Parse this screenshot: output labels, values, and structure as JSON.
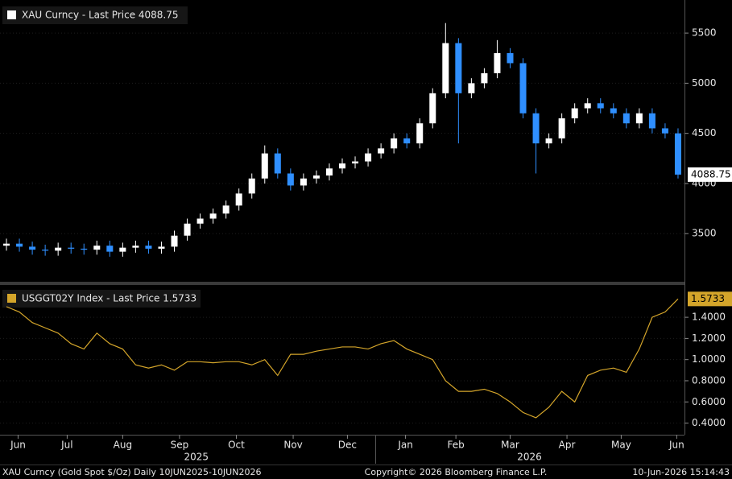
{
  "chart_data": [
    {
      "type": "candlestick",
      "title": "XAU Curncy - Last Price 4088.75",
      "up_color": "#ffffff",
      "down_color": "#2f8fff",
      "legend_color": "#ffffff",
      "open": [
        3380,
        3400,
        3370,
        3340,
        3330,
        3360,
        3350,
        3340,
        3380,
        3320,
        3360,
        3380,
        3350,
        3370,
        3480,
        3600,
        3650,
        3700,
        3780,
        3900,
        4050,
        4300,
        4100,
        3980,
        4050,
        4080,
        4150,
        4200,
        4220,
        4300,
        4350,
        4450,
        4400,
        4600,
        4900,
        5400,
        4900,
        5000,
        5100,
        5300,
        5200,
        4700,
        4400,
        4450,
        4650,
        4750,
        4800,
        4750,
        4700,
        4600,
        4700,
        4550,
        4500
      ],
      "high": [
        3450,
        3450,
        3420,
        3390,
        3410,
        3410,
        3400,
        3430,
        3430,
        3410,
        3430,
        3430,
        3420,
        3530,
        3650,
        3700,
        3750,
        3830,
        3950,
        4100,
        4380,
        4350,
        4150,
        4100,
        4130,
        4200,
        4250,
        4270,
        4350,
        4400,
        4500,
        4500,
        4650,
        4950,
        5600,
        5450,
        5050,
        5150,
        5430,
        5350,
        5250,
        4750,
        4500,
        4700,
        4800,
        4850,
        4850,
        4800,
        4750,
        4750,
        4750,
        4600,
        4550
      ],
      "low": [
        3330,
        3320,
        3290,
        3280,
        3280,
        3300,
        3290,
        3290,
        3270,
        3270,
        3310,
        3300,
        3300,
        3320,
        3430,
        3550,
        3600,
        3650,
        3730,
        3850,
        4000,
        4050,
        3930,
        3930,
        4000,
        4030,
        4100,
        4150,
        4170,
        4250,
        4300,
        4350,
        4350,
        4550,
        4850,
        4400,
        4850,
        4950,
        5050,
        5150,
        4650,
        4100,
        4350,
        4400,
        4600,
        4700,
        4700,
        4650,
        4550,
        4550,
        4500,
        4450,
        4050
      ],
      "close": [
        3400,
        3370,
        3340,
        3330,
        3360,
        3350,
        3340,
        3380,
        3320,
        3360,
        3380,
        3350,
        3370,
        3480,
        3600,
        3650,
        3700,
        3780,
        3900,
        4050,
        4300,
        4100,
        3980,
        4050,
        4080,
        4150,
        4200,
        4220,
        4300,
        4350,
        4450,
        4400,
        4600,
        4900,
        5400,
        4900,
        5000,
        5100,
        5300,
        5200,
        4700,
        4400,
        4450,
        4650,
        4750,
        4800,
        4750,
        4700,
        4600,
        4700,
        4550,
        4500,
        4088.75
      ],
      "xlim": [
        0,
        53
      ],
      "ylim": [
        3020,
        5830
      ],
      "yticks": [
        3500,
        4000,
        4500,
        5000,
        5500
      ]
    },
    {
      "type": "line",
      "title": "USGGT02Y Index - Last Price 1.5733",
      "color": "#d4a52a",
      "values": [
        1.5,
        1.45,
        1.35,
        1.3,
        1.25,
        1.15,
        1.1,
        1.25,
        1.15,
        1.1,
        0.95,
        0.92,
        0.95,
        0.9,
        0.98,
        0.98,
        0.97,
        0.98,
        0.98,
        0.95,
        1.0,
        0.85,
        1.05,
        1.05,
        1.08,
        1.1,
        1.12,
        1.12,
        1.1,
        1.15,
        1.18,
        1.1,
        1.05,
        1.0,
        0.8,
        0.7,
        0.7,
        0.72,
        0.68,
        0.6,
        0.5,
        0.45,
        0.55,
        0.7,
        0.6,
        0.85,
        0.9,
        0.92,
        0.88,
        1.1,
        1.4,
        1.45,
        1.5733
      ],
      "xlim": [
        0,
        53
      ],
      "ylim": [
        0.29,
        1.69
      ],
      "yticks": [
        {
          "value": 0.4,
          "label": "0.4000"
        },
        {
          "value": 0.6,
          "label": "0.6000"
        },
        {
          "value": 0.8,
          "label": "0.8000"
        },
        {
          "value": 1.0,
          "label": "1.0000"
        },
        {
          "value": 1.2,
          "label": "1.2000"
        },
        {
          "value": 1.4,
          "label": "1.4000"
        }
      ],
      "xticks": [
        {
          "value": 1.4,
          "label": "Jun"
        },
        {
          "value": 5.2,
          "label": "Jul"
        },
        {
          "value": 9.5,
          "label": "Aug"
        },
        {
          "value": 13.9,
          "label": "Sep"
        },
        {
          "value": 18.3,
          "label": "Oct"
        },
        {
          "value": 22.7,
          "label": "Nov"
        },
        {
          "value": 26.9,
          "label": "Dec"
        },
        {
          "value": 31.4,
          "label": "Jan"
        },
        {
          "value": 35.3,
          "label": "Feb"
        },
        {
          "value": 39.5,
          "label": "Mar"
        },
        {
          "value": 43.9,
          "label": "Apr"
        },
        {
          "value": 48.1,
          "label": "May"
        },
        {
          "value": 52.4,
          "label": "Jun"
        }
      ],
      "year_ticks": [
        {
          "value": 15.2,
          "label": "2025"
        },
        {
          "value": 41.0,
          "label": "2026"
        }
      ]
    }
  ],
  "footer": {
    "left": "XAU Curncy (Gold Spot  $/Oz) Daily 10JUN2025-10JUN2026",
    "center": "Copyright© 2026 Bloomberg Finance L.P.",
    "right": "10-Jun-2026 15:14:43"
  }
}
